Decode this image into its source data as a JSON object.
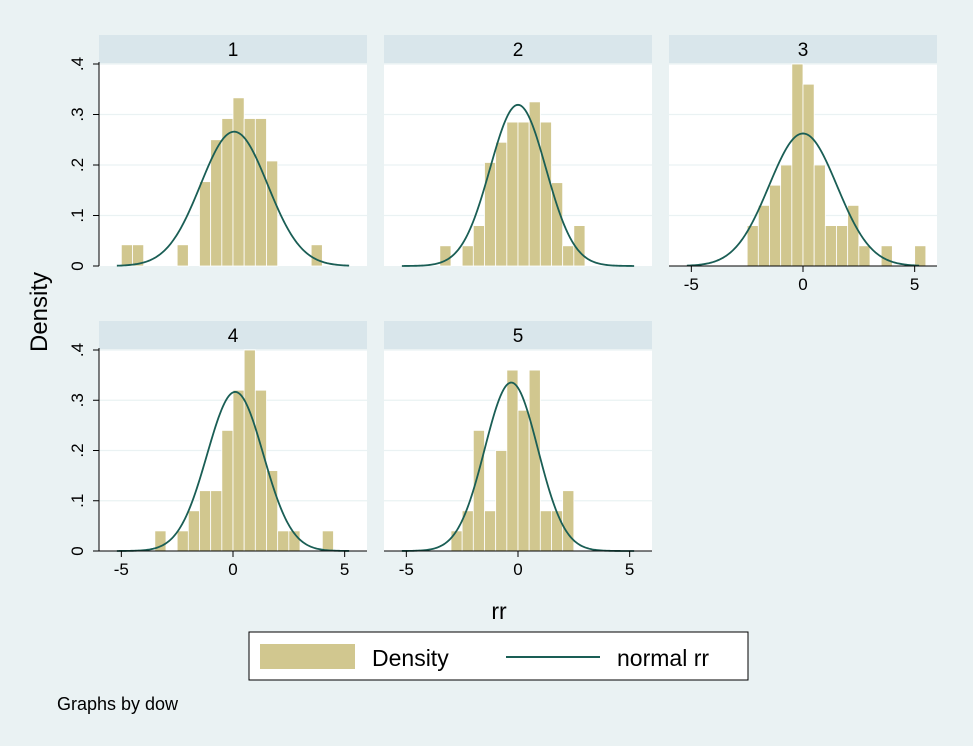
{
  "chart_data": {
    "type": "histogram",
    "ylabel": "Density",
    "xlabel": "rr",
    "note": "Graphs by dow",
    "xlim": [
      -6,
      6
    ],
    "ylim": [
      0,
      0.4
    ],
    "x_ticks": [
      -5,
      0,
      5
    ],
    "y_ticks": [
      0,
      0.1,
      0.2,
      0.3,
      0.4
    ],
    "y_tick_labels": [
      "0",
      ".1",
      ".2",
      ".3",
      ".4"
    ],
    "grid": true,
    "bin_width": 0.5,
    "legend": {
      "position": "bottom",
      "entries": [
        {
          "label": "Density",
          "type": "bar",
          "color": "#d1c78f"
        },
        {
          "label": "normal rr",
          "type": "line",
          "color": "#1a5e55"
        }
      ]
    },
    "panels": [
      {
        "title": "1",
        "mean": 0.05,
        "sd": 1.5,
        "bins": [
          {
            "x": -5.0,
            "density": 0.042
          },
          {
            "x": -4.5,
            "density": 0.042
          },
          {
            "x": -2.5,
            "density": 0.042
          },
          {
            "x": -1.5,
            "density": 0.167
          },
          {
            "x": -1.0,
            "density": 0.25
          },
          {
            "x": -0.5,
            "density": 0.292
          },
          {
            "x": 0.0,
            "density": 0.333
          },
          {
            "x": 0.5,
            "density": 0.292
          },
          {
            "x": 1.0,
            "density": 0.292
          },
          {
            "x": 1.5,
            "density": 0.208
          },
          {
            "x": 3.5,
            "density": 0.042
          }
        ]
      },
      {
        "title": "2",
        "mean": 0.0,
        "sd": 1.25,
        "bins": [
          {
            "x": -3.5,
            "density": 0.04
          },
          {
            "x": -2.5,
            "density": 0.04
          },
          {
            "x": -2.0,
            "density": 0.08
          },
          {
            "x": -1.5,
            "density": 0.205
          },
          {
            "x": -1.0,
            "density": 0.245
          },
          {
            "x": -0.5,
            "density": 0.285
          },
          {
            "x": 0.0,
            "density": 0.285
          },
          {
            "x": 0.5,
            "density": 0.325
          },
          {
            "x": 1.0,
            "density": 0.285
          },
          {
            "x": 1.5,
            "density": 0.165
          },
          {
            "x": 2.0,
            "density": 0.04
          },
          {
            "x": 2.5,
            "density": 0.08
          }
        ]
      },
      {
        "title": "3",
        "mean": 0.0,
        "sd": 1.52,
        "bins": [
          {
            "x": -2.5,
            "density": 0.08
          },
          {
            "x": -2.0,
            "density": 0.12
          },
          {
            "x": -1.5,
            "density": 0.16
          },
          {
            "x": -1.0,
            "density": 0.2
          },
          {
            "x": -0.5,
            "density": 0.4
          },
          {
            "x": 0.0,
            "density": 0.36
          },
          {
            "x": 0.5,
            "density": 0.2
          },
          {
            "x": 1.0,
            "density": 0.08
          },
          {
            "x": 1.5,
            "density": 0.08
          },
          {
            "x": 2.0,
            "density": 0.12
          },
          {
            "x": 2.5,
            "density": 0.04
          },
          {
            "x": 3.5,
            "density": 0.04
          },
          {
            "x": 5.0,
            "density": 0.04
          }
        ]
      },
      {
        "title": "4",
        "mean": 0.1,
        "sd": 1.26,
        "bins": [
          {
            "x": -3.5,
            "density": 0.04
          },
          {
            "x": -2.5,
            "density": 0.04
          },
          {
            "x": -2.0,
            "density": 0.08
          },
          {
            "x": -1.5,
            "density": 0.12
          },
          {
            "x": -1.0,
            "density": 0.12
          },
          {
            "x": -0.5,
            "density": 0.24
          },
          {
            "x": 0.0,
            "density": 0.32
          },
          {
            "x": 0.5,
            "density": 0.4
          },
          {
            "x": 1.0,
            "density": 0.32
          },
          {
            "x": 1.5,
            "density": 0.16
          },
          {
            "x": 2.0,
            "density": 0.04
          },
          {
            "x": 2.5,
            "density": 0.04
          },
          {
            "x": 4.0,
            "density": 0.04
          }
        ]
      },
      {
        "title": "5",
        "mean": -0.3,
        "sd": 1.19,
        "bins": [
          {
            "x": -3.0,
            "density": 0.04
          },
          {
            "x": -2.5,
            "density": 0.08
          },
          {
            "x": -2.0,
            "density": 0.24
          },
          {
            "x": -1.5,
            "density": 0.08
          },
          {
            "x": -1.0,
            "density": 0.2
          },
          {
            "x": -0.5,
            "density": 0.36
          },
          {
            "x": 0.0,
            "density": 0.28
          },
          {
            "x": 0.5,
            "density": 0.36
          },
          {
            "x": 1.0,
            "density": 0.08
          },
          {
            "x": 1.5,
            "density": 0.08
          },
          {
            "x": 2.0,
            "density": 0.12
          }
        ]
      }
    ]
  }
}
